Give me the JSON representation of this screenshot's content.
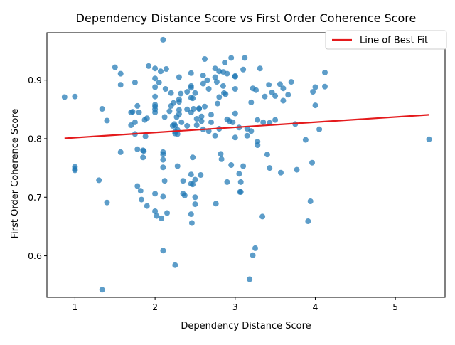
{
  "chart_data": {
    "type": "scatter",
    "title": "Dependency Distance Score vs First Order Coherence Score",
    "xlabel": "Dependency Distance Score",
    "ylabel": "First Order Coherence Score",
    "xlim": [
      0.65,
      5.62
    ],
    "ylim": [
      0.529,
      0.981
    ],
    "xticks": [
      1,
      2,
      3,
      4,
      5
    ],
    "yticks": [
      0.6,
      0.7,
      0.8,
      0.9
    ],
    "grid": false,
    "legend": {
      "placement": "top-right",
      "entries": [
        "Line of Best Fit"
      ]
    },
    "colors": {
      "points": "#1f77b4",
      "fit_line": "#e41a1c"
    },
    "series": [
      {
        "kind": "points",
        "points": [
          [
            0.87,
            0.871
          ],
          [
            1.0,
            0.872
          ],
          [
            1.0,
            0.752
          ],
          [
            1.0,
            0.746
          ],
          [
            1.0,
            0.748
          ],
          [
            1.3,
            0.729
          ],
          [
            1.34,
            0.851
          ],
          [
            1.34,
            0.542
          ],
          [
            1.4,
            0.831
          ],
          [
            1.4,
            0.691
          ],
          [
            1.5,
            0.922
          ],
          [
            1.57,
            0.911
          ],
          [
            1.57,
            0.892
          ],
          [
            1.57,
            0.777
          ],
          [
            1.7,
            0.845
          ],
          [
            1.7,
            0.823
          ],
          [
            1.72,
            0.846
          ],
          [
            1.75,
            0.896
          ],
          [
            1.75,
            0.828
          ],
          [
            1.75,
            0.808
          ],
          [
            1.78,
            0.856
          ],
          [
            1.78,
            0.782
          ],
          [
            1.78,
            0.719
          ],
          [
            1.8,
            0.845
          ],
          [
            1.82,
            0.711
          ],
          [
            1.83,
            0.696
          ],
          [
            1.85,
            0.78
          ],
          [
            1.85,
            0.768
          ],
          [
            1.86,
            0.779
          ],
          [
            1.87,
            0.832
          ],
          [
            1.88,
            0.804
          ],
          [
            1.9,
            0.835
          ],
          [
            1.9,
            0.685
          ],
          [
            1.92,
            0.924
          ],
          [
            2.0,
            0.92
          ],
          [
            2.0,
            0.903
          ],
          [
            2.0,
            0.888
          ],
          [
            2.0,
            0.872
          ],
          [
            2.0,
            0.858
          ],
          [
            2.0,
            0.855
          ],
          [
            2.0,
            0.85
          ],
          [
            2.0,
            0.845
          ],
          [
            2.0,
            0.706
          ],
          [
            2.0,
            0.676
          ],
          [
            2.02,
            0.668
          ],
          [
            2.05,
            0.896
          ],
          [
            2.07,
            0.915
          ],
          [
            2.08,
            0.664
          ],
          [
            2.1,
            0.969
          ],
          [
            2.1,
            0.777
          ],
          [
            2.1,
            0.773
          ],
          [
            2.1,
            0.764
          ],
          [
            2.1,
            0.751
          ],
          [
            2.1,
            0.701
          ],
          [
            2.1,
            0.609
          ],
          [
            2.12,
            0.728
          ],
          [
            2.12,
            0.837
          ],
          [
            2.13,
            0.885
          ],
          [
            2.14,
            0.919
          ],
          [
            2.15,
            0.673
          ],
          [
            2.18,
            0.847
          ],
          [
            2.2,
            0.878
          ],
          [
            2.2,
            0.856
          ],
          [
            2.22,
            0.822
          ],
          [
            2.23,
            0.861
          ],
          [
            2.24,
            0.825
          ],
          [
            2.25,
            0.822
          ],
          [
            2.25,
            0.812
          ],
          [
            2.25,
            0.809
          ],
          [
            2.25,
            0.584
          ],
          [
            2.27,
            0.837
          ],
          [
            2.28,
            0.815
          ],
          [
            2.28,
            0.808
          ],
          [
            2.28,
            0.753
          ],
          [
            2.3,
            0.905
          ],
          [
            2.3,
            0.863
          ],
          [
            2.3,
            0.867
          ],
          [
            2.3,
            0.849
          ],
          [
            2.3,
            0.842
          ],
          [
            2.32,
            0.877
          ],
          [
            2.33,
            0.828
          ],
          [
            2.35,
            0.706
          ],
          [
            2.35,
            0.728
          ],
          [
            2.37,
            0.703
          ],
          [
            2.4,
            0.88
          ],
          [
            2.4,
            0.85
          ],
          [
            2.4,
            0.822
          ],
          [
            2.45,
            0.912
          ],
          [
            2.45,
            0.89
          ],
          [
            2.45,
            0.887
          ],
          [
            2.45,
            0.87
          ],
          [
            2.45,
            0.845
          ],
          [
            2.45,
            0.739
          ],
          [
            2.45,
            0.723
          ],
          [
            2.45,
            0.671
          ],
          [
            2.46,
            0.656
          ],
          [
            2.47,
            0.768
          ],
          [
            2.47,
            0.722
          ],
          [
            2.47,
            0.869
          ],
          [
            2.48,
            0.851
          ],
          [
            2.5,
            0.878
          ],
          [
            2.5,
            0.7
          ],
          [
            2.5,
            0.688
          ],
          [
            2.5,
            0.73
          ],
          [
            2.52,
            0.834
          ],
          [
            2.52,
            0.823
          ],
          [
            2.55,
            0.851
          ],
          [
            2.55,
            0.852
          ],
          [
            2.57,
            0.738
          ],
          [
            2.58,
            0.838
          ],
          [
            2.58,
            0.83
          ],
          [
            2.6,
            0.894
          ],
          [
            2.6,
            0.816
          ],
          [
            2.6,
            0.908
          ],
          [
            2.62,
            0.936
          ],
          [
            2.62,
            0.855
          ],
          [
            2.65,
            0.9
          ],
          [
            2.67,
            0.885
          ],
          [
            2.67,
            0.813
          ],
          [
            2.7,
            0.828
          ],
          [
            2.7,
            0.841
          ],
          [
            2.75,
            0.92
          ],
          [
            2.75,
            0.905
          ],
          [
            2.75,
            0.805
          ],
          [
            2.76,
            0.689
          ],
          [
            2.77,
            0.897
          ],
          [
            2.78,
            0.86
          ],
          [
            2.8,
            0.915
          ],
          [
            2.8,
            0.817
          ],
          [
            2.8,
            0.871
          ],
          [
            2.82,
            0.774
          ],
          [
            2.83,
            0.765
          ],
          [
            2.85,
            0.914
          ],
          [
            2.85,
            0.89
          ],
          [
            2.86,
            0.878
          ],
          [
            2.87,
            0.93
          ],
          [
            2.88,
            0.876
          ],
          [
            2.9,
            0.726
          ],
          [
            2.9,
            0.833
          ],
          [
            2.9,
            0.911
          ],
          [
            2.93,
            0.83
          ],
          [
            2.95,
            0.938
          ],
          [
            2.95,
            0.755
          ],
          [
            2.97,
            0.828
          ],
          [
            3.0,
            0.907
          ],
          [
            3.0,
            0.906
          ],
          [
            3.0,
            0.885
          ],
          [
            3.0,
            0.843
          ],
          [
            3.0,
            0.802
          ],
          [
            3.05,
            0.819
          ],
          [
            3.05,
            0.74
          ],
          [
            3.06,
            0.709
          ],
          [
            3.07,
            0.726
          ],
          [
            3.07,
            0.709
          ],
          [
            3.1,
            0.753
          ],
          [
            3.1,
            0.918
          ],
          [
            3.12,
            0.938
          ],
          [
            3.15,
            0.805
          ],
          [
            3.15,
            0.817
          ],
          [
            3.18,
            0.56
          ],
          [
            3.2,
            0.813
          ],
          [
            3.2,
            0.862
          ],
          [
            3.22,
            0.886
          ],
          [
            3.22,
            0.601
          ],
          [
            3.25,
            0.613
          ],
          [
            3.26,
            0.883
          ],
          [
            3.28,
            0.832
          ],
          [
            3.28,
            0.789
          ],
          [
            3.28,
            0.795
          ],
          [
            3.31,
            0.92
          ],
          [
            3.34,
            0.667
          ],
          [
            3.35,
            0.828
          ],
          [
            3.37,
            0.872
          ],
          [
            3.4,
            0.773
          ],
          [
            3.42,
            0.892
          ],
          [
            3.43,
            0.827
          ],
          [
            3.43,
            0.75
          ],
          [
            3.46,
            0.879
          ],
          [
            3.5,
            0.873
          ],
          [
            3.5,
            0.832
          ],
          [
            3.56,
            0.893
          ],
          [
            3.57,
            0.742
          ],
          [
            3.6,
            0.865
          ],
          [
            3.6,
            0.886
          ],
          [
            3.66,
            0.875
          ],
          [
            3.7,
            0.897
          ],
          [
            3.75,
            0.825
          ],
          [
            3.77,
            0.747
          ],
          [
            3.88,
            0.798
          ],
          [
            3.91,
            0.659
          ],
          [
            3.94,
            0.693
          ],
          [
            3.96,
            0.759
          ],
          [
            3.97,
            0.88
          ],
          [
            4.0,
            0.888
          ],
          [
            4.0,
            0.857
          ],
          [
            4.05,
            0.816
          ],
          [
            4.12,
            0.913
          ],
          [
            4.12,
            0.889
          ],
          [
            5.42,
            0.799
          ]
        ]
      },
      {
        "kind": "line",
        "name": "Line of Best Fit",
        "x": [
          0.87,
          5.42
        ],
        "y": [
          0.8006,
          0.8408
        ]
      }
    ]
  }
}
